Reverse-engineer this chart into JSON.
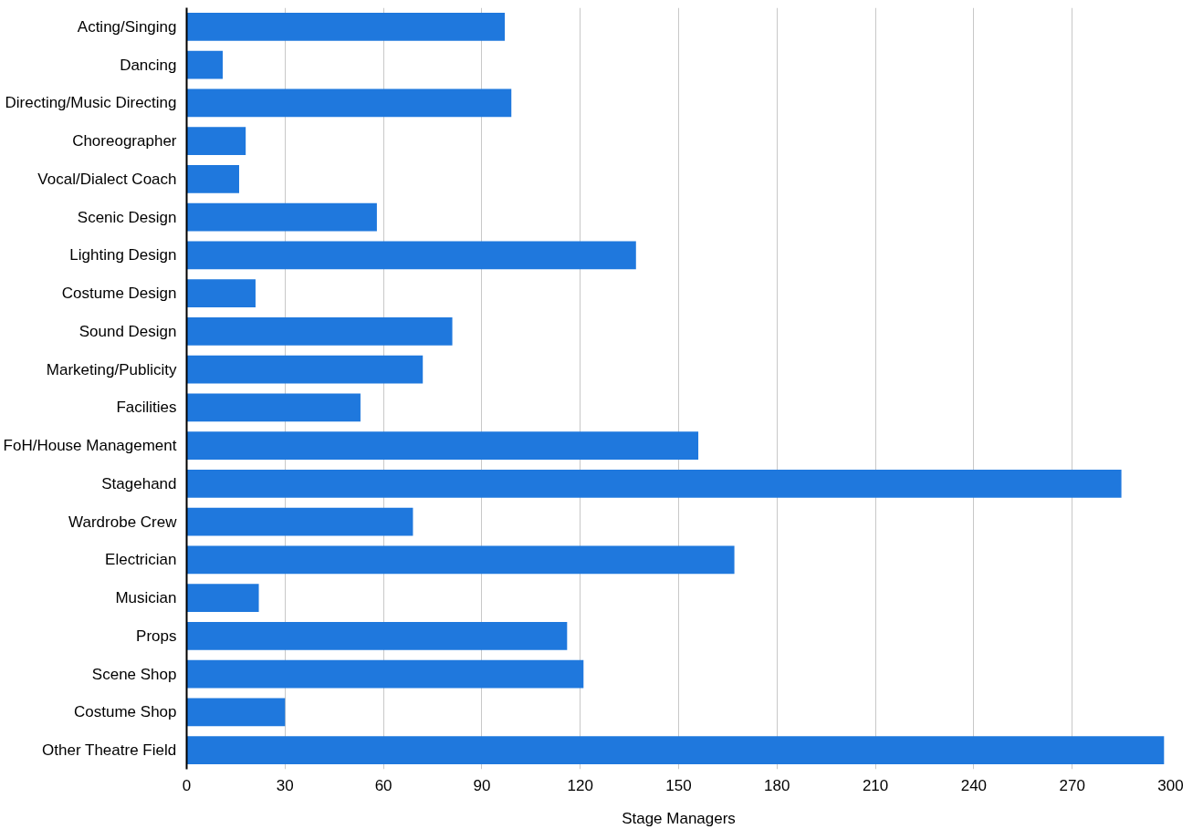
{
  "chart_data": {
    "type": "bar",
    "orientation": "horizontal",
    "xlabel": "Stage Managers",
    "categories": [
      "Acting/Singing",
      "Dancing",
      "Directing/Music Directing",
      "Choreographer",
      "Vocal/Dialect Coach",
      "Scenic Design",
      "Lighting Design",
      "Costume Design",
      "Sound Design",
      "Marketing/Publicity",
      "Facilities",
      "FoH/House Management",
      "Stagehand",
      "Wardrobe Crew",
      "Electrician",
      "Musician",
      "Props",
      "Scene Shop",
      "Costume Shop",
      "Other Theatre Field"
    ],
    "values": [
      97,
      11,
      99,
      18,
      16,
      58,
      137,
      21,
      81,
      72,
      53,
      156,
      285,
      69,
      167,
      22,
      116,
      121,
      30,
      298
    ],
    "color": "#1f78dd",
    "xlim": [
      0,
      300
    ],
    "xticks": [
      0,
      30,
      60,
      90,
      120,
      150,
      180,
      210,
      240,
      270,
      300
    ],
    "grid": "x"
  }
}
